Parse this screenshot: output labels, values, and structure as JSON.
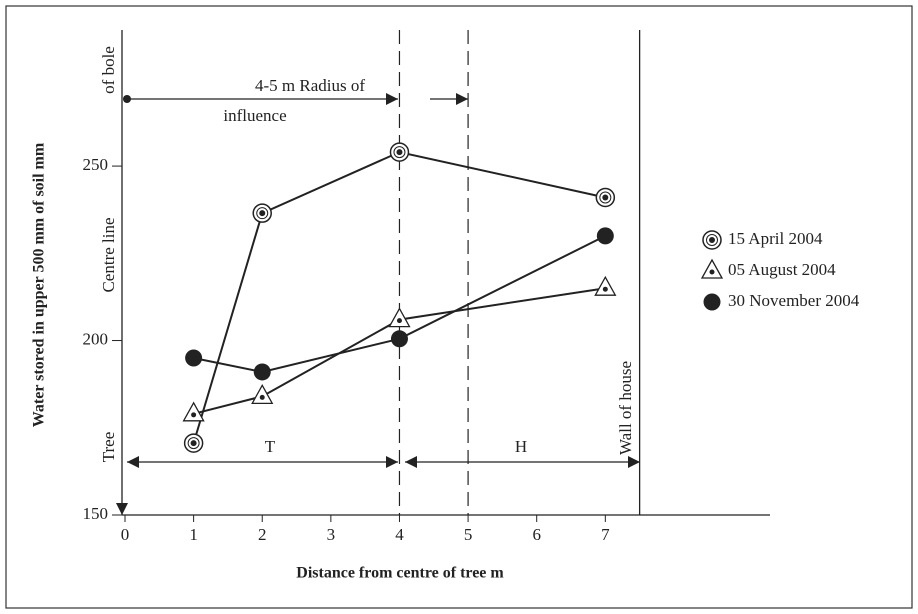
{
  "chart_data": {
    "type": "line",
    "x_label": "Distance from centre of tree m",
    "y_label": "Water stored in upper 500 mm of soil mm",
    "x": [
      1,
      2,
      4,
      7
    ],
    "series": [
      {
        "name": "15 April 2004",
        "color": "#222222",
        "marker": "circle-dot",
        "values": [
          170.6,
          236.5,
          254,
          241
        ]
      },
      {
        "name": "05 August 2004",
        "color": "#222222",
        "marker": "triangle-dot",
        "values": [
          179,
          184,
          206,
          215
        ]
      },
      {
        "name": "30 November 2004",
        "color": "#222222",
        "marker": "circle",
        "values": [
          195,
          191,
          200.5,
          230
        ]
      }
    ],
    "xlim": [
      0,
      9.4
    ],
    "xticks": [
      0,
      1,
      2,
      3,
      4,
      5,
      6,
      7
    ],
    "ylim": [
      150,
      289
    ],
    "yticks": [
      150,
      200,
      250
    ],
    "dashed_lines": [
      4,
      5
    ],
    "wall_line": 7.5,
    "annotations": {
      "radius": [
        "4-5 m Radius of",
        "influence"
      ],
      "bole": "of bole",
      "centre": "Centre line",
      "tree": "Tree",
      "wall": "Wall of house",
      "t": "T",
      "h": "H"
    },
    "legend": "right"
  }
}
